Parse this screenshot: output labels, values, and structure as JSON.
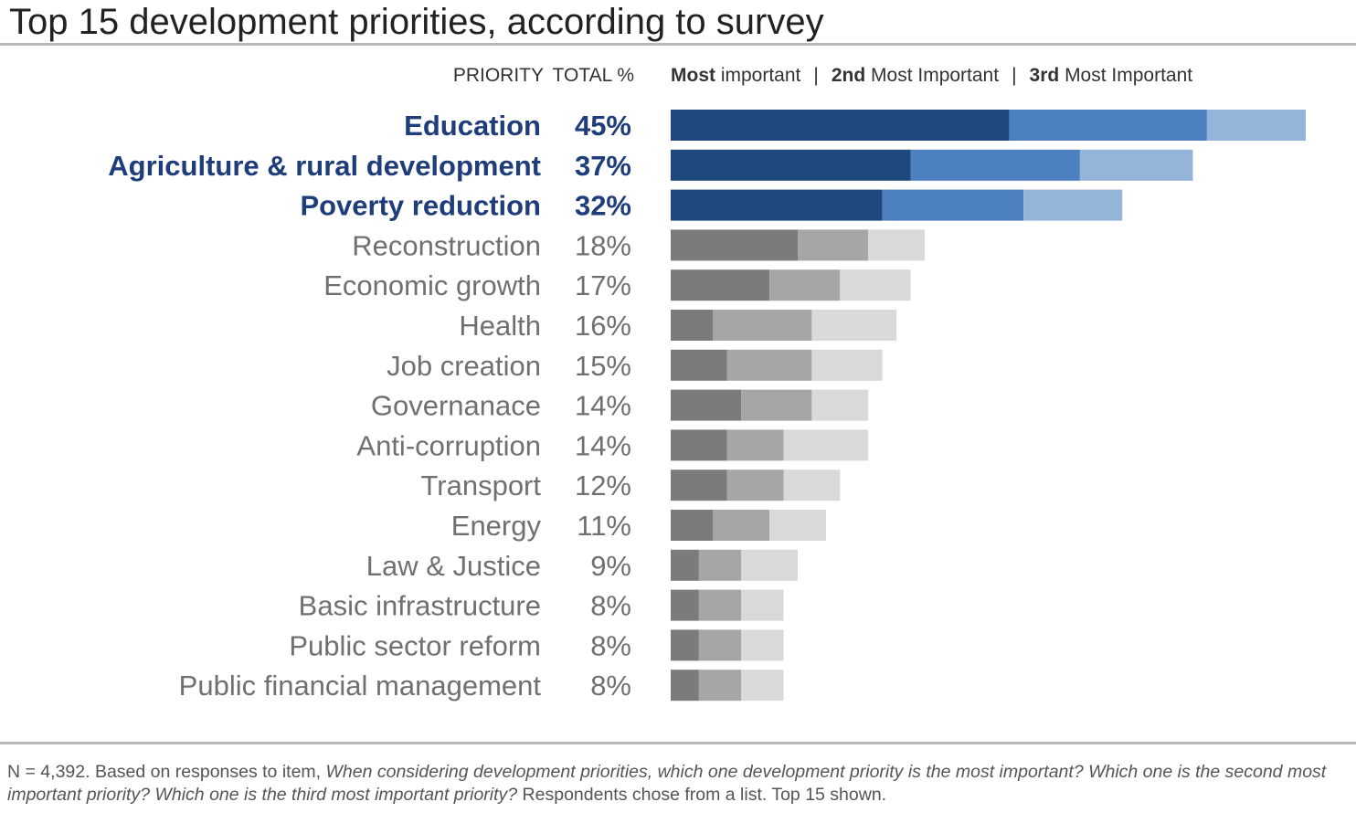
{
  "title": "Top 15 development priorities, according to survey",
  "header": {
    "priority_label": "PRIORITY",
    "total_label": "TOTAL %",
    "legend": [
      {
        "bold": "Most",
        "rest": " important"
      },
      {
        "bold": "2nd",
        "rest": " Most Important"
      },
      {
        "bold": "3rd",
        "rest": " Most Important"
      }
    ],
    "separator": "|"
  },
  "colors": {
    "highlight": {
      "first": "#1f487c",
      "second": "#4c80bf",
      "third": "#95b4da",
      "text": "#1f3d7a"
    },
    "regular": {
      "first": "#7b7b7b",
      "second": "#a6a6a6",
      "third": "#d9d9d9",
      "text": "#707070"
    }
  },
  "chart_data": {
    "type": "bar",
    "orientation": "horizontal",
    "stacked": true,
    "title": "Top 15 development priorities, according to survey",
    "categories": [
      "Education",
      "Agriculture & rural development",
      "Poverty reduction",
      "Reconstruction",
      "Economic growth",
      "Health",
      "Job creation",
      "Governanace",
      "Anti-corruption",
      "Transport",
      "Energy",
      "Law & Justice",
      "Basic infrastructure",
      "Public sector reform",
      "Public financial management"
    ],
    "totals": [
      "45%",
      "37%",
      "32%",
      "18%",
      "17%",
      "16%",
      "15%",
      "14%",
      "14%",
      "12%",
      "11%",
      "9%",
      "8%",
      "8%",
      "8%"
    ],
    "highlighted": [
      true,
      true,
      true,
      false,
      false,
      false,
      false,
      false,
      false,
      false,
      false,
      false,
      false,
      false,
      false
    ],
    "series": [
      {
        "name": "Most important",
        "values": [
          24,
          17,
          15,
          9,
          7,
          3,
          4,
          5,
          4,
          4,
          3,
          2,
          2,
          2,
          2
        ]
      },
      {
        "name": "2nd Most Important",
        "values": [
          14,
          12,
          10,
          5,
          5,
          7,
          6,
          5,
          4,
          4,
          4,
          3,
          3,
          3,
          3
        ]
      },
      {
        "name": "3rd Most Important",
        "values": [
          7,
          8,
          7,
          4,
          5,
          6,
          5,
          4,
          6,
          4,
          4,
          4,
          3,
          3,
          3
        ]
      }
    ],
    "xlim": [
      0,
      45
    ]
  },
  "footnote": {
    "prefix": "N = 4,392. Based on responses to item, ",
    "question": "When considering development priorities, which one development priority is the most important? Which one is the second most important priority? Which one is the third most important priority?",
    "suffix": " Respondents chose from a list. Top 15 shown."
  }
}
